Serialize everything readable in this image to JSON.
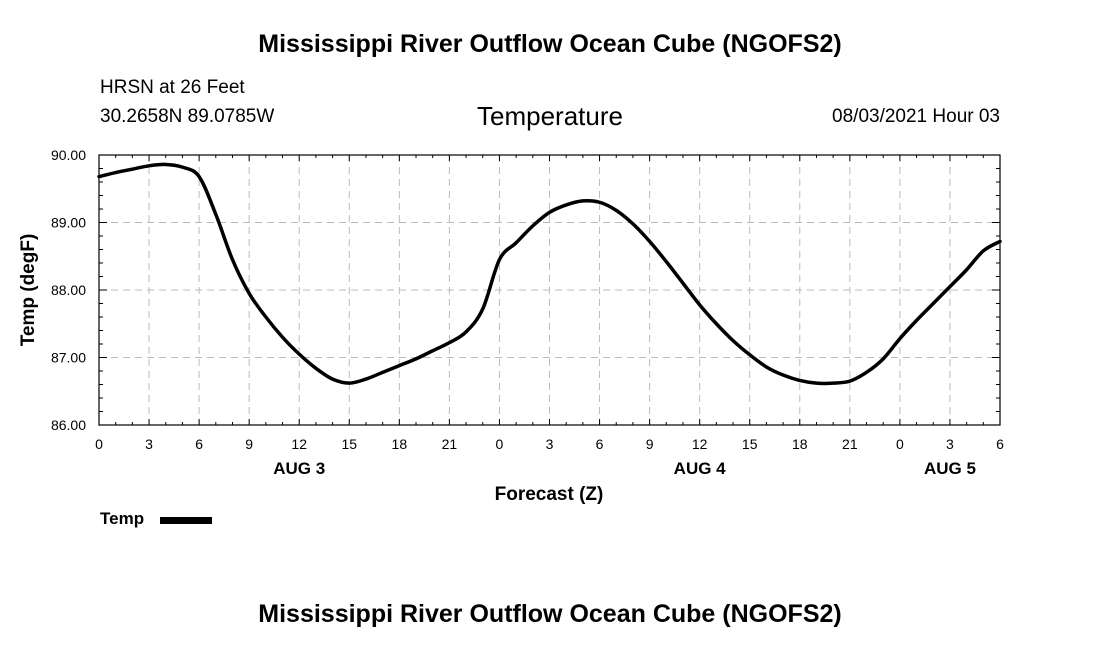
{
  "header": {
    "title_top": "Mississippi River Outflow Ocean Cube (NGOFS2)",
    "station": "HRSN at 26 Feet",
    "coords": "30.2658N  89.0785W",
    "subtitle": "Temperature",
    "datetime": "08/03/2021 Hour 03"
  },
  "footer": {
    "title_bottom": "Mississippi River Outflow Ocean Cube (NGOFS2)"
  },
  "legend": {
    "label": "Temp"
  },
  "colors": {
    "line": "#000000",
    "grid": "#bbbbbb"
  },
  "chart_data": {
    "type": "line",
    "title": "Temperature",
    "xlabel": "Forecast (Z)",
    "ylabel": "Temp (degF)",
    "ylim": [
      86.0,
      90.0
    ],
    "yticks": [
      "86.00",
      "87.00",
      "88.00",
      "89.00",
      "90.00"
    ],
    "ytick_values": [
      86,
      87,
      88,
      89,
      90
    ],
    "xlim": [
      0,
      54
    ],
    "xtick_values": [
      0,
      3,
      6,
      9,
      12,
      15,
      18,
      21,
      24,
      27,
      30,
      33,
      36,
      39,
      42,
      45,
      48,
      51,
      54
    ],
    "xtick_labels": [
      "0",
      "3",
      "6",
      "9",
      "12",
      "15",
      "18",
      "21",
      "0",
      "3",
      "6",
      "9",
      "12",
      "15",
      "18",
      "21",
      "0",
      "3",
      "6"
    ],
    "day_labels": [
      {
        "label": "AUG 3",
        "hour": 12
      },
      {
        "label": "AUG 4",
        "hour": 36
      },
      {
        "label": "AUG 5",
        "hour": 51
      }
    ],
    "grid": true,
    "series": [
      {
        "name": "Temp",
        "x": [
          0,
          1,
          2,
          3,
          4,
          5,
          6,
          7,
          8,
          9,
          10,
          11,
          12,
          13,
          14,
          15,
          16,
          17,
          18,
          19,
          20,
          21,
          22,
          23,
          24,
          25,
          26,
          27,
          28,
          29,
          30,
          31,
          32,
          33,
          34,
          35,
          36,
          37,
          38,
          39,
          40,
          41,
          42,
          43,
          44,
          45,
          46,
          47,
          48,
          49,
          50,
          51,
          52,
          53,
          54
        ],
        "values": [
          89.68,
          89.74,
          89.79,
          89.84,
          89.86,
          89.82,
          89.68,
          89.12,
          88.45,
          87.95,
          87.6,
          87.3,
          87.05,
          86.84,
          86.68,
          86.62,
          86.68,
          86.78,
          86.88,
          86.98,
          87.1,
          87.22,
          87.38,
          87.72,
          88.45,
          88.7,
          88.95,
          89.15,
          89.26,
          89.32,
          89.3,
          89.18,
          88.98,
          88.72,
          88.42,
          88.1,
          87.78,
          87.5,
          87.25,
          87.04,
          86.86,
          86.74,
          86.66,
          86.62,
          86.62,
          86.65,
          86.78,
          86.98,
          87.28,
          87.55,
          87.8,
          88.05,
          88.3,
          88.58,
          88.72
        ]
      }
    ]
  }
}
